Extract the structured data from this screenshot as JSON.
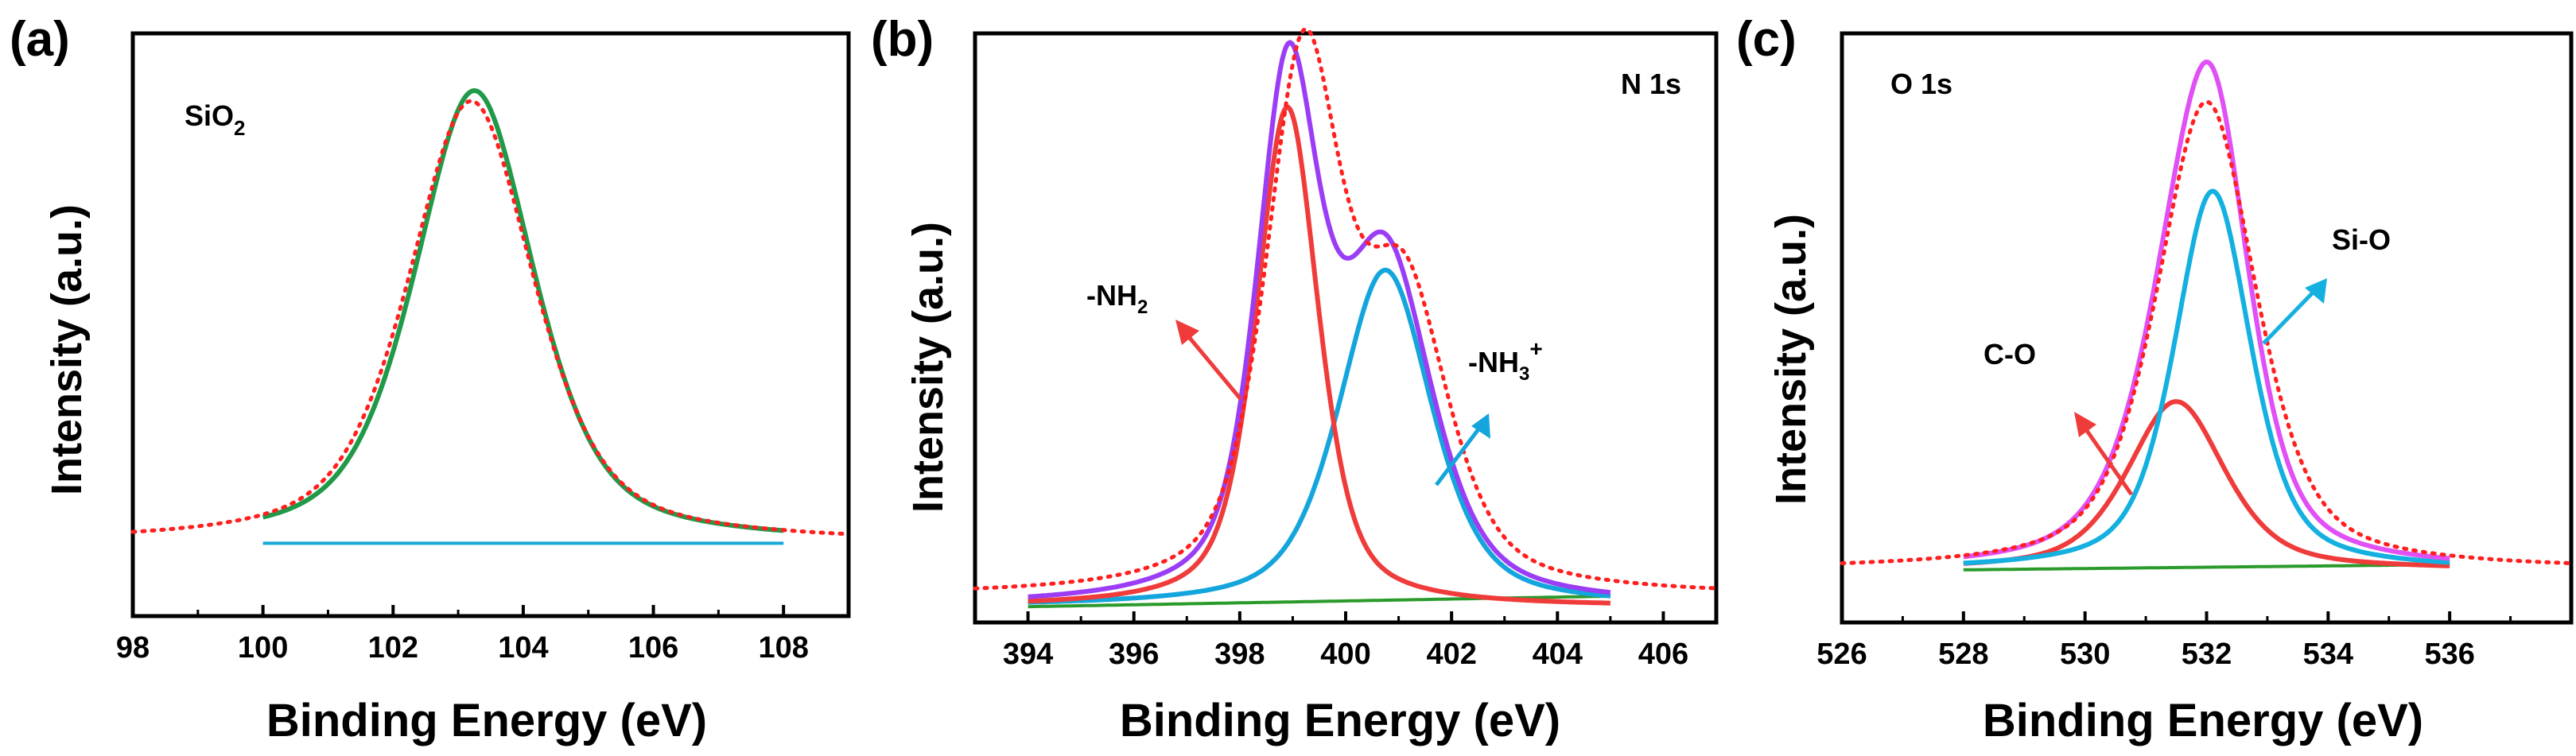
{
  "colors": {
    "raw": "#ff1f1f",
    "fit": "#9b3df5",
    "fit_c": "#e050f5",
    "nh2": "#f03b3b",
    "nh3": "#14a5dc",
    "bg_b": "#2a9a2a",
    "bg_a": "#18a8d8",
    "env_a": "#1f9a48",
    "co": "#f03b3b",
    "sio": "#14b0e0",
    "bg_c": "#2a9a2a"
  },
  "chart_data": [
    {
      "type": "line",
      "panel_label": "(a)",
      "region_label": "SiO₂",
      "region_label_main": "SiO",
      "region_label_sub": "2",
      "xlabel": "Binding Energy (eV)",
      "ylabel": "Intensity (a.u.)",
      "xlim": [
        98,
        109
      ],
      "ylim": [
        0,
        1.12
      ],
      "x_ticks": [
        98,
        100,
        102,
        104,
        106,
        108
      ],
      "x_tick_labels": [
        "98",
        "100",
        "102",
        "104",
        "106",
        "108"
      ],
      "series": [
        {
          "name": "raw",
          "style": "dotted",
          "x_range": [
            98,
            109
          ],
          "baseline": 0.14,
          "peaks": [
            {
              "center": 103.2,
              "height": 0.85,
              "fwhm": 2.3
            }
          ]
        },
        {
          "name": "background",
          "style": "solid",
          "x_range": [
            100,
            108
          ],
          "baseline": 0.14,
          "peaks": []
        },
        {
          "name": "fit",
          "style": "solid",
          "x_range": [
            100,
            108
          ],
          "baseline": 0.14,
          "peaks": [
            {
              "center": 103.25,
              "height": 0.87,
              "fwhm": 2.2
            }
          ]
        }
      ]
    },
    {
      "type": "line",
      "panel_label": "(b)",
      "region_label": "N 1s",
      "xlabel": "Binding Energy (eV)",
      "ylabel": "Intensity (a.u.)",
      "xlim": [
        393,
        407
      ],
      "ylim": [
        0,
        1.12
      ],
      "x_ticks": [
        394,
        396,
        398,
        400,
        402,
        404,
        406
      ],
      "x_tick_labels": [
        "394",
        "396",
        "398",
        "400",
        "402",
        "404",
        "406"
      ],
      "annotations": [
        {
          "text": "-NH₂",
          "text_main": "-NH",
          "text_sub": "2",
          "points_to": "peak at 398.9 eV"
        },
        {
          "text": "-NH₃⁺",
          "text_main": "-NH",
          "text_sub": "3",
          "text_sup": "+",
          "points_to": "peak at 400.7 eV"
        }
      ],
      "series": [
        {
          "name": "raw",
          "style": "dotted",
          "x_range": [
            393,
            407
          ],
          "baseline": 0.05,
          "peaks": [
            {
              "center": 399.2,
              "height": 0.99,
              "fwhm": 1.7
            },
            {
              "center": 401.1,
              "height": 0.55,
              "fwhm": 2.0
            }
          ]
        },
        {
          "name": "background",
          "style": "solid",
          "x_range": [
            394,
            405
          ],
          "baseline": 0.03,
          "baseline_end": 0.05,
          "peaks": []
        },
        {
          "name": "-NH2",
          "style": "solid",
          "x_range": [
            394,
            405
          ],
          "baseline": 0.03,
          "peaks": [
            {
              "center": 398.9,
              "height": 0.95,
              "fwhm": 1.4
            }
          ]
        },
        {
          "name": "-NH3+",
          "style": "solid",
          "x_range": [
            394,
            405
          ],
          "baseline": 0.03,
          "peaks": [
            {
              "center": 400.75,
              "height": 0.64,
              "fwhm": 2.1
            }
          ]
        },
        {
          "name": "envelope",
          "style": "solid",
          "x_range": [
            394,
            405
          ],
          "baseline": 0.03,
          "peaks": [
            {
              "center": 398.9,
              "height": 0.95,
              "fwhm": 1.4
            },
            {
              "center": 400.75,
              "height": 0.64,
              "fwhm": 2.1
            }
          ]
        }
      ]
    },
    {
      "type": "line",
      "panel_label": "(c)",
      "region_label": "O 1s",
      "xlabel": "Binding Energy (eV)",
      "ylabel": "Intensity (a.u.)",
      "xlim": [
        526,
        538
      ],
      "ylim": [
        0,
        1.12
      ],
      "x_ticks": [
        526,
        528,
        530,
        532,
        534,
        536
      ],
      "x_tick_labels": [
        "526",
        "528",
        "530",
        "532",
        "534",
        "536"
      ],
      "annotations": [
        {
          "text": "C-O",
          "points_to": "peak at 531.5 eV"
        },
        {
          "text": "Si-O",
          "points_to": "peak at 532.1 eV"
        }
      ],
      "series": [
        {
          "name": "raw",
          "style": "dotted",
          "x_range": [
            526,
            538
          ],
          "baseline": 0.1,
          "peaks": [
            {
              "center": 532.0,
              "height": 0.89,
              "fwhm": 1.95
            }
          ]
        },
        {
          "name": "background",
          "style": "solid",
          "x_range": [
            528,
            536
          ],
          "baseline": 0.1,
          "baseline_end": 0.11,
          "peaks": []
        },
        {
          "name": "C-O",
          "style": "solid",
          "x_range": [
            528,
            536
          ],
          "baseline": 0.1,
          "peaks": [
            {
              "center": 531.5,
              "height": 0.32,
              "fwhm": 1.9
            }
          ]
        },
        {
          "name": "Si-O",
          "style": "solid",
          "x_range": [
            528,
            536
          ],
          "baseline": 0.1,
          "peaks": [
            {
              "center": 532.1,
              "height": 0.72,
              "fwhm": 1.5
            }
          ]
        },
        {
          "name": "envelope",
          "style": "solid",
          "x_range": [
            528,
            536
          ],
          "baseline": 0.1,
          "peaks": [
            {
              "center": 531.5,
              "height": 0.32,
              "fwhm": 1.9
            },
            {
              "center": 532.1,
              "height": 0.72,
              "fwhm": 1.5
            }
          ]
        }
      ]
    }
  ]
}
